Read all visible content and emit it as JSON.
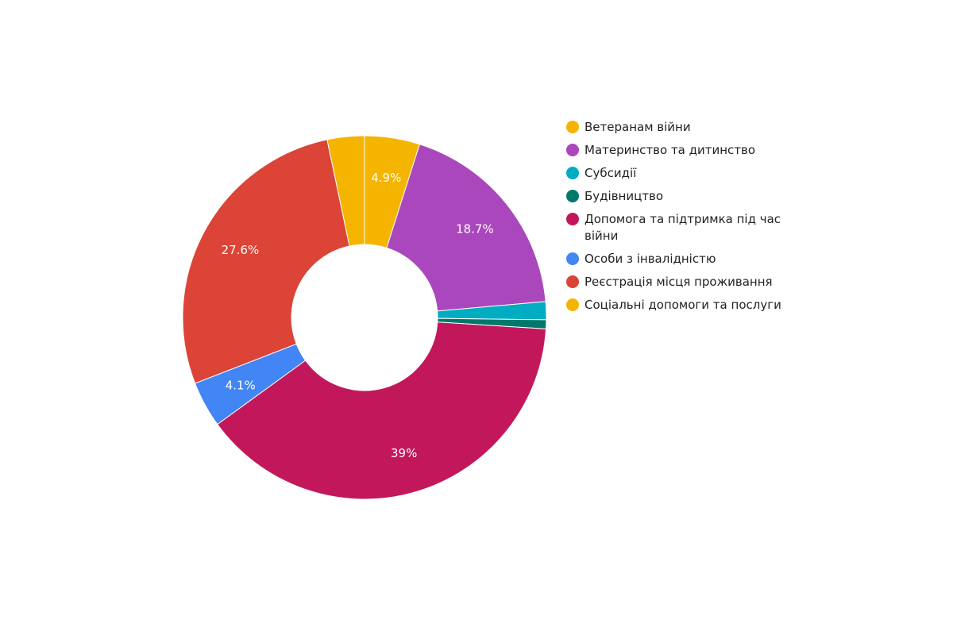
{
  "chart_data": {
    "type": "pie",
    "donut": true,
    "legend_position": "right",
    "labels": [
      "Ветеранам війни",
      "Материнство та дитинство",
      "Субсидії",
      "Будівництво",
      "Допомога та підтримка під час війни",
      "Особи з інвалідністю",
      "Реєстрація місця проживання",
      "Соціальні допомоги та послуги"
    ],
    "values": [
      4.9,
      18.7,
      1.6,
      0.8,
      39.0,
      4.1,
      27.6,
      3.3
    ],
    "data_labels": [
      "4.9%",
      "18.7%",
      "",
      "",
      "39%",
      "4.1%",
      "27.6%",
      ""
    ],
    "colors": [
      "#F4B400",
      "#AB47BC",
      "#00ACC1",
      "#00796B",
      "#C2185B",
      "#4285F4",
      "#DB4437",
      "#F4B400"
    ]
  }
}
